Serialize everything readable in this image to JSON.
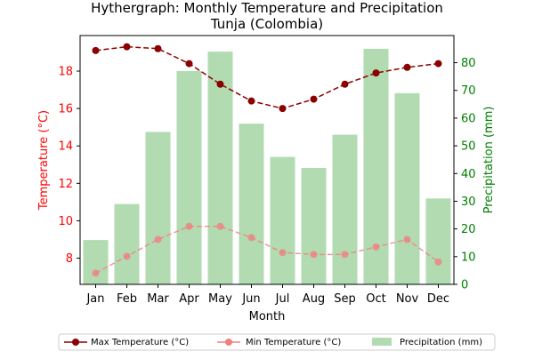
{
  "chart_data": {
    "type": "bar",
    "title": "Hythergraph: Monthly Temperature and Precipitation",
    "subtitle": "Tunja (Colombia)",
    "xlabel": "Month",
    "ylabel_left": "Temperature (°C)",
    "ylabel_right": "Precipitation (mm)",
    "categories": [
      "Jan",
      "Feb",
      "Mar",
      "Apr",
      "May",
      "Jun",
      "Jul",
      "Aug",
      "Sep",
      "Oct",
      "Nov",
      "Dec"
    ],
    "ylim_left": [
      6.6,
      19.9
    ],
    "yticks_left": [
      8,
      10,
      12,
      14,
      16,
      18
    ],
    "ylim_right": [
      0,
      89.8
    ],
    "yticks_right": [
      0,
      10,
      20,
      30,
      40,
      50,
      60,
      70,
      80
    ],
    "series": [
      {
        "name": "Max Temperature (°C)",
        "type": "line",
        "axis": "left",
        "color": "#8b0000",
        "linestyle": "dashed",
        "values": [
          19.1,
          19.3,
          19.2,
          18.4,
          17.3,
          16.4,
          16.0,
          16.5,
          17.3,
          17.9,
          18.2,
          18.4
        ]
      },
      {
        "name": "Min Temperature (°C)",
        "type": "line",
        "axis": "left",
        "color": "#f08080",
        "linestyle": "dashed",
        "values": [
          7.2,
          8.1,
          9.0,
          9.7,
          9.7,
          9.1,
          8.3,
          8.2,
          8.2,
          8.6,
          9.0,
          7.8
        ]
      },
      {
        "name": "Precipitation (mm)",
        "type": "bar",
        "axis": "right",
        "color": "#b2dbb2",
        "values": [
          16,
          29,
          55,
          77,
          84,
          58,
          46,
          42,
          54,
          85,
          69,
          31
        ]
      }
    ],
    "legend_position": "bottom-center",
    "left_axis_color": "#ff0000",
    "right_axis_color": "#008000"
  }
}
